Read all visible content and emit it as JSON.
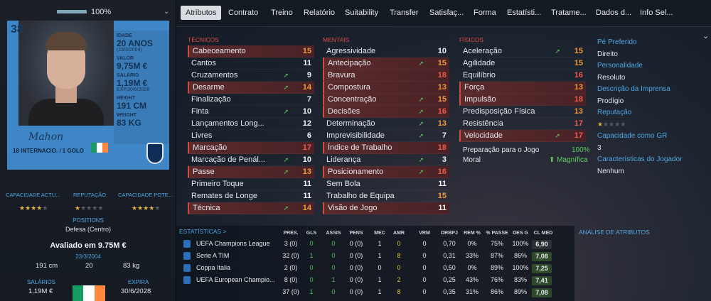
{
  "left": {
    "condition": "100%",
    "number": "38",
    "card": {
      "idade_label": "IDADE",
      "idade_val": "20 ANOS",
      "idade_sub": "(23/3/2004)",
      "valor_label": "VALOR",
      "valor_val": "9,75M €",
      "salario_label": "SALÁRIO",
      "salario_val": "1,19M €",
      "salario_sub": "EXP.30/6/2028",
      "height_label": "HEIGHT",
      "height_val": "191 CM",
      "weight_label": "WEIGHT",
      "weight_val": "83 KG",
      "signature": "Mahon",
      "caps": "18 INTERNACIO. / 1 GOLO"
    },
    "ratings": {
      "cap_actual_label": "CAPACIDADE ACTU...",
      "reputation_label": "REPUTAÇÃO",
      "cap_potential_label": "CAPACIDADE POTE...",
      "cap_actual_stars": 4,
      "reputation_stars": 1,
      "cap_potential_stars": 4
    },
    "positions_label": "POSITIONS",
    "position_value": "Defesa (Centro)",
    "valued": "Avaliado em 9.75M €",
    "dob": "23/3/2004",
    "height": "191 cm",
    "age": "20",
    "weight": "83 kg",
    "salary_label": "SALÁRIOS",
    "expiry_label": "EXPIRA",
    "salary": "1,19M €",
    "expiry": "30/6/2028",
    "flag_colors": [
      "#169b62",
      "#ffffff",
      "#ff883e"
    ]
  },
  "tabs": [
    "Atributos",
    "Contrato",
    "Treino",
    "Relatório",
    "Suitability",
    "Transfer",
    "Satisfaç...",
    "Forma",
    "Estatísti...",
    "Tratame...",
    "Dados d...",
    "Info Sel..."
  ],
  "columns": {
    "tecnicos": "TÉCNICOS",
    "mentais": "MENTAIS",
    "fisicos": "FÍSICOS"
  },
  "tecnicos": [
    {
      "name": "Cabeceamento",
      "value": "15",
      "hl": true,
      "up": false
    },
    {
      "name": "Cantos",
      "value": "11",
      "hl": false,
      "up": false
    },
    {
      "name": "Cruzamentos",
      "value": "9",
      "hl": false,
      "up": true
    },
    {
      "name": "Desarme",
      "value": "14",
      "hl": true,
      "up": true
    },
    {
      "name": "Finalização",
      "value": "7",
      "hl": false,
      "up": false
    },
    {
      "name": "Finta",
      "value": "10",
      "hl": false,
      "up": true
    },
    {
      "name": "Lançamentos Long...",
      "value": "12",
      "hl": false,
      "up": false
    },
    {
      "name": "Livres",
      "value": "6",
      "hl": false,
      "up": false
    },
    {
      "name": "Marcação",
      "value": "17",
      "hl": true,
      "up": false
    },
    {
      "name": "Marcação de Penál...",
      "value": "10",
      "hl": false,
      "up": true
    },
    {
      "name": "Passe",
      "value": "13",
      "hl": true,
      "up": true
    },
    {
      "name": "Primeiro Toque",
      "value": "11",
      "hl": false,
      "up": false
    },
    {
      "name": "Remates de Longe",
      "value": "11",
      "hl": false,
      "up": false
    },
    {
      "name": "Técnica",
      "value": "14",
      "hl": true,
      "up": true
    }
  ],
  "mentais": [
    {
      "name": "Agressividade",
      "value": "10",
      "hl": false,
      "up": false
    },
    {
      "name": "Antecipação",
      "value": "15",
      "hl": true,
      "up": true
    },
    {
      "name": "Bravura",
      "value": "18",
      "hl": true,
      "up": false
    },
    {
      "name": "Compostura",
      "value": "13",
      "hl": true,
      "up": false
    },
    {
      "name": "Concentração",
      "value": "15",
      "hl": true,
      "up": true
    },
    {
      "name": "Decisões",
      "value": "16",
      "hl": true,
      "up": true
    },
    {
      "name": "Determinação",
      "value": "13",
      "hl": false,
      "up": true
    },
    {
      "name": "Imprevisibilidade",
      "value": "7",
      "hl": false,
      "up": true
    },
    {
      "name": "Índice de Trabalho",
      "value": "18",
      "hl": true,
      "up": false
    },
    {
      "name": "Liderança",
      "value": "3",
      "hl": false,
      "up": true
    },
    {
      "name": "Posicionamento",
      "value": "16",
      "hl": true,
      "up": true
    },
    {
      "name": "Sem Bola",
      "value": "11",
      "hl": false,
      "up": false
    },
    {
      "name": "Trabalho de Equipa",
      "value": "15",
      "hl": false,
      "up": false
    },
    {
      "name": "Visão de Jogo",
      "value": "11",
      "hl": true,
      "up": false
    }
  ],
  "fisicos": [
    {
      "name": "Aceleração",
      "value": "15",
      "hl": false,
      "up": true
    },
    {
      "name": "Agilidade",
      "value": "15",
      "hl": false,
      "up": false
    },
    {
      "name": "Equilíbrio",
      "value": "16",
      "hl": false,
      "up": false
    },
    {
      "name": "Força",
      "value": "13",
      "hl": true,
      "up": false
    },
    {
      "name": "Impulsão",
      "value": "18",
      "hl": true,
      "up": false
    },
    {
      "name": "Predisposição Física",
      "value": "13",
      "hl": false,
      "up": false
    },
    {
      "name": "Resistência",
      "value": "17",
      "hl": false,
      "up": false
    },
    {
      "name": "Velocidade",
      "value": "17",
      "hl": true,
      "up": true
    }
  ],
  "prep_label": "Preparação para o Jogo",
  "prep_value": "100%",
  "moral_label": "Moral",
  "moral_value": "Magnífica",
  "info": [
    {
      "label": "Pé Preferido",
      "value": "Direito"
    },
    {
      "label": "Personalidade",
      "value": "Resoluto"
    },
    {
      "label": "Descrição da Imprensa",
      "value": "Prodígio"
    },
    {
      "label": "Reputação",
      "value": ""
    },
    {
      "label": "Capacidade como GR",
      "value": "3"
    },
    {
      "label": "Características do Jogador",
      "value": "Nenhum"
    }
  ],
  "reputation_stars_info": 1,
  "stats": {
    "title": "ESTATÍSTICAS >",
    "analysis_title": "ANÁLISE DE ATRIBUTOS",
    "headers": [
      "PRES.",
      "GLS",
      "ASSIS",
      "PENS",
      "MEC",
      "AMR",
      "VRM",
      "DRBPJ",
      "REM %",
      "% PASSE",
      "DES G",
      "CL MED"
    ],
    "rows": [
      {
        "comp": "UEFA Champions League",
        "vals": [
          "3 (0)",
          "0",
          "0",
          "0 (0)",
          "1",
          "0",
          "0",
          "0,70",
          "0%",
          "75%",
          "100%",
          "6,90"
        ],
        "rating_color": "#2c2f34"
      },
      {
        "comp": "Serie A TIM",
        "vals": [
          "32 (0)",
          "1",
          "0",
          "0 (0)",
          "1",
          "8",
          "0",
          "0,31",
          "33%",
          "87%",
          "86%",
          "7,08"
        ],
        "rating_color": "#2f4a2a"
      },
      {
        "comp": "Coppa Italia",
        "vals": [
          "2 (0)",
          "0",
          "0",
          "0 (0)",
          "0",
          "0",
          "0",
          "0,50",
          "0%",
          "89%",
          "100%",
          "7,25"
        ],
        "rating_color": "#2f4a2a"
      },
      {
        "comp": "UEFA European Champio...",
        "vals": [
          "8 (0)",
          "0",
          "1",
          "0 (0)",
          "1",
          "2",
          "0",
          "0,25",
          "43%",
          "76%",
          "83%",
          "7,41"
        ],
        "rating_color": "#2f4a2a"
      },
      {
        "comp": "",
        "vals": [
          "37 (0)",
          "1",
          "0",
          "0 (0)",
          "1",
          "8",
          "0",
          "0,35",
          "31%",
          "86%",
          "89%",
          "7,08"
        ],
        "rating_color": "#2f4a2a"
      }
    ]
  }
}
